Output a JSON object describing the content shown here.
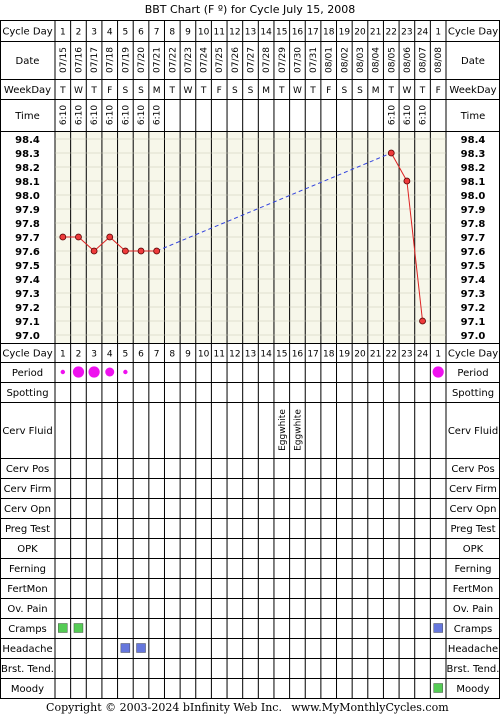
{
  "title": "BBT Chart (F º) for Cycle July 15, 2008",
  "footer": {
    "copyright": "Copyright © 2003-2024 bInfinity Web Inc.",
    "site": "www.MyMonthlyCycles.com"
  },
  "row_labels": {
    "cycle_day": "Cycle Day",
    "date": "Date",
    "weekday": "WeekDay",
    "time": "Time"
  },
  "cycle_days": [
    "1",
    "2",
    "3",
    "4",
    "5",
    "6",
    "7",
    "8",
    "9",
    "10",
    "11",
    "12",
    "13",
    "14",
    "15",
    "16",
    "17",
    "18",
    "19",
    "20",
    "21",
    "22",
    "23",
    "24",
    "1"
  ],
  "dates": [
    "07/15",
    "07/16",
    "07/17",
    "07/18",
    "07/19",
    "07/20",
    "07/21",
    "07/22",
    "07/23",
    "07/24",
    "07/25",
    "07/26",
    "07/27",
    "07/28",
    "07/29",
    "07/30",
    "07/31",
    "08/01",
    "08/02",
    "08/03",
    "08/04",
    "08/05",
    "08/06",
    "08/07",
    "08/08"
  ],
  "weekdays": [
    "T",
    "W",
    "T",
    "F",
    "S",
    "S",
    "M",
    "T",
    "W",
    "T",
    "F",
    "S",
    "S",
    "M",
    "T",
    "W",
    "T",
    "F",
    "S",
    "S",
    "M",
    "T",
    "W",
    "T",
    "F"
  ],
  "times": [
    "6:10",
    "6:10",
    "6:10",
    "6:10",
    "6:10",
    "6:10",
    "6:10",
    "",
    "",
    "",
    "",
    "",
    "",
    "",
    "",
    "",
    "",
    "",
    "",
    "",
    "",
    "6:10",
    "6:10",
    "6:10",
    ""
  ],
  "temp_axis": [
    "98.4",
    "98.3",
    "98.2",
    "98.1",
    "98.0",
    "97.9",
    "97.8",
    "97.7",
    "97.6",
    "97.5",
    "97.4",
    "97.3",
    "97.2",
    "97.1",
    "97.0"
  ],
  "colors": {
    "grid": "#000000",
    "chart_bg": "#f7f7ea",
    "point_fill": "#ee3b3b",
    "line": "#dd2222",
    "dashed_line": "#3344dd",
    "period": "#ee11ee",
    "cramps_green": "#55cc55",
    "headache_blue": "#6677dd",
    "moody_green": "#55cc55"
  },
  "chart_data": {
    "type": "line",
    "title": "BBT Chart (F º) for Cycle July 15, 2008",
    "xlabel": "Cycle Day",
    "ylabel": "",
    "ylim": [
      97.0,
      98.4
    ],
    "x": [
      1,
      2,
      3,
      4,
      5,
      6,
      7,
      8,
      9,
      10,
      11,
      12,
      13,
      14,
      15,
      16,
      17,
      18,
      19,
      20,
      21,
      22,
      23,
      24,
      25
    ],
    "series": [
      {
        "values": [
          97.7,
          97.7,
          97.6,
          97.7,
          97.6,
          97.6,
          97.6,
          null,
          null,
          null,
          null,
          null,
          null,
          null,
          null,
          null,
          null,
          null,
          null,
          null,
          null,
          98.3,
          98.1,
          97.1,
          null
        ]
      }
    ]
  },
  "observations": [
    {
      "label": "Period",
      "type": "period",
      "values": [
        "small",
        "large",
        "large",
        "medium",
        "small",
        "",
        "",
        "",
        "",
        "",
        "",
        "",
        "",
        "",
        "",
        "",
        "",
        "",
        "",
        "",
        "",
        "",
        "",
        "",
        "large"
      ]
    },
    {
      "label": "Spotting",
      "type": "none"
    },
    {
      "label": "Cerv Fluid",
      "type": "text",
      "values": [
        "",
        "",
        "",
        "",
        "",
        "",
        "",
        "",
        "",
        "",
        "",
        "",
        "",
        "",
        "Eggwhite",
        "Eggwhite",
        "",
        "",
        "",
        "",
        "",
        "",
        "",
        "",
        ""
      ]
    },
    {
      "label": "Cerv Pos",
      "type": "none"
    },
    {
      "label": "Cerv Firm",
      "type": "none"
    },
    {
      "label": "Cerv Opn",
      "type": "none"
    },
    {
      "label": "Preg Test",
      "type": "none"
    },
    {
      "label": "OPK",
      "type": "none"
    },
    {
      "label": "Ferning",
      "type": "none"
    },
    {
      "label": "FertMon",
      "type": "none"
    },
    {
      "label": "Ov. Pain",
      "type": "none"
    },
    {
      "label": "Cramps",
      "type": "square",
      "color": "cramps_green",
      "color2": "headache_blue",
      "days": [
        1,
        2
      ],
      "days2": [
        25
      ]
    },
    {
      "label": "Headache",
      "type": "square",
      "color": "headache_blue",
      "days": [
        5,
        6
      ]
    },
    {
      "label": "Brst. Tend.",
      "type": "none"
    },
    {
      "label": "Moody",
      "type": "square",
      "color": "moody_green",
      "days": [
        25
      ]
    }
  ]
}
